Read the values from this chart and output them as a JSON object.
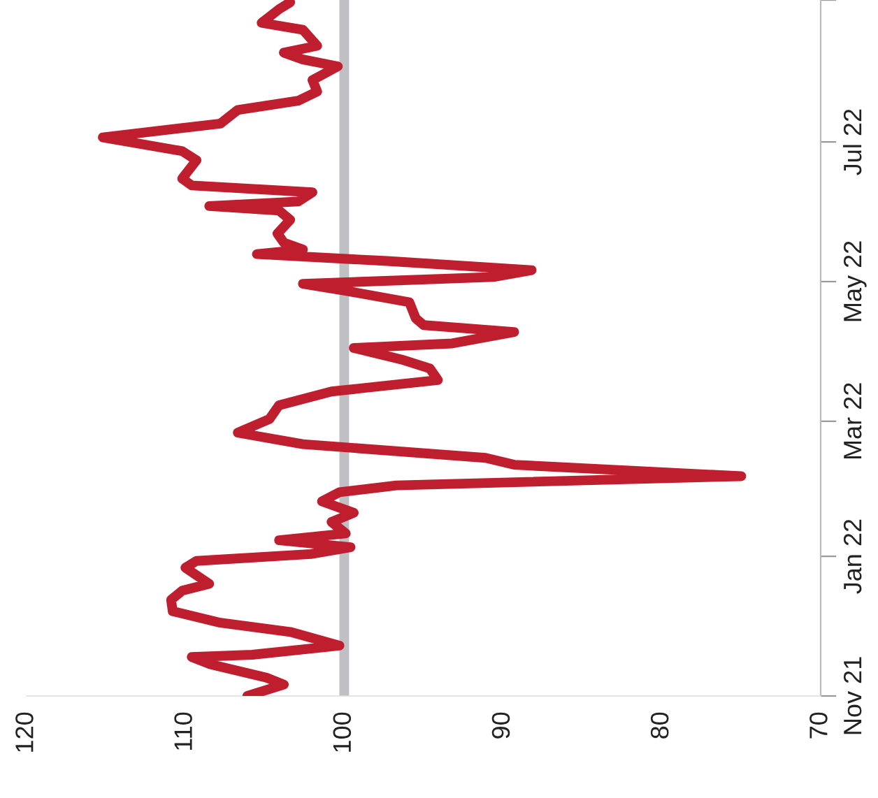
{
  "chart_data": {
    "type": "line",
    "orientation": "horizontal",
    "x": [
      "2021-11-01",
      "2021-11-06",
      "2021-11-09",
      "2021-11-15",
      "2021-11-18",
      "2021-11-19",
      "2021-11-23",
      "2021-11-29",
      "2021-12-03",
      "2021-12-08",
      "2021-12-13",
      "2021-12-17",
      "2021-12-20",
      "2021-12-27",
      "2021-12-30",
      "2022-01-02",
      "2022-01-05",
      "2022-01-08",
      "2022-01-11",
      "2022-01-16",
      "2022-01-20",
      "2022-01-25",
      "2022-01-29",
      "2022-02-01",
      "2022-02-05",
      "2022-02-10",
      "2022-02-13",
      "2022-02-19",
      "2022-02-24",
      "2022-03-02",
      "2022-03-08",
      "2022-03-14",
      "2022-03-19",
      "2022-03-24",
      "2022-03-28",
      "2022-04-02",
      "2022-04-04",
      "2022-04-09",
      "2022-04-12",
      "2022-04-15",
      "2022-04-22",
      "2022-04-27",
      "2022-04-30",
      "2022-05-03",
      "2022-05-06",
      "2022-05-10",
      "2022-05-13",
      "2022-05-15",
      "2022-05-18",
      "2022-05-22",
      "2022-05-28",
      "2022-06-01",
      "2022-06-03",
      "2022-06-05",
      "2022-06-09",
      "2022-06-12",
      "2022-06-15",
      "2022-06-23",
      "2022-06-27",
      "2022-07-03",
      "2022-07-09",
      "2022-07-15",
      "2022-07-19",
      "2022-07-23",
      "2022-07-28",
      "2022-08-03",
      "2022-08-06",
      "2022-08-09",
      "2022-08-12",
      "2022-08-19",
      "2022-08-22",
      "2022-08-28",
      "2022-08-31"
    ],
    "series": [
      {
        "color": "#be1e2d",
        "values": [
          106.1,
          103.8,
          104.9,
          108.5,
          109.6,
          105.8,
          100.3,
          103.4,
          107.8,
          110.8,
          110.9,
          110.2,
          108.5,
          110.0,
          109.3,
          102.1,
          99.6,
          104.1,
          99.9,
          100.8,
          99.4,
          101.4,
          100.3,
          96.7,
          75.0,
          89.3,
          91.1,
          102.6,
          106.7,
          104.7,
          104.1,
          100.8,
          94.1,
          94.6,
          96.4,
          99.4,
          93.2,
          89.3,
          95.0,
          95.5,
          95.9,
          99.9,
          102.6,
          90.6,
          88.2,
          97.3,
          105.5,
          102.6,
          103.8,
          104.2,
          103.4,
          104.1,
          108.5,
          102.9,
          102.0,
          109.6,
          110.2,
          109.3,
          110.2,
          115.2,
          107.8,
          106.7,
          102.9,
          101.7,
          102.0,
          100.4,
          102.6,
          103.8,
          101.7,
          102.6,
          105.2,
          104.1,
          103.4
        ]
      }
    ],
    "xlim": [
      120,
      70
    ],
    "xticks": [
      120,
      110,
      100,
      90,
      80,
      70
    ],
    "ylim": [
      "2021-11-01",
      "2022-09-01"
    ],
    "yticks": [
      {
        "value": "2021-11-01",
        "label": "Nov 21"
      },
      {
        "value": "2022-01-01",
        "label": "Jan 22"
      },
      {
        "value": "2022-03-01",
        "label": "Mar 22"
      },
      {
        "value": "2022-05-01",
        "label": "May 22"
      },
      {
        "value": "2022-07-01",
        "label": "Jul 22"
      },
      {
        "value": "2022-09-01",
        "label": null
      }
    ],
    "ref_lines": [
      {
        "axis": "x",
        "value": 100,
        "color": "#c0c0c4"
      }
    ]
  }
}
